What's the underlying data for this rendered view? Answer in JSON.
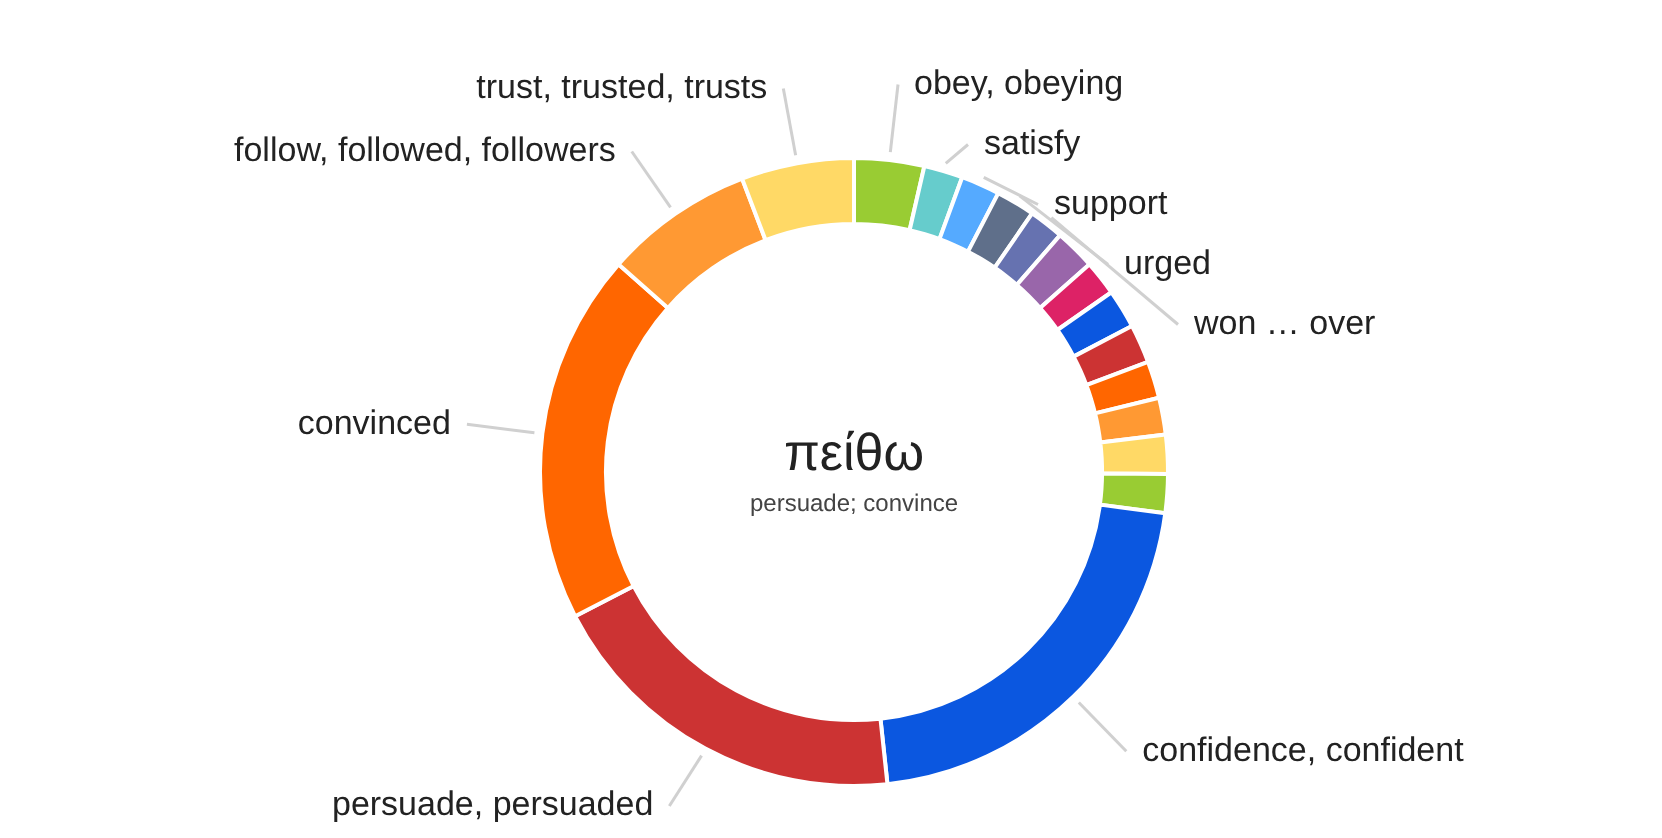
{
  "chart_data": {
    "type": "donut",
    "title": "πείθω",
    "subtitle": "persuade; convince",
    "categories": [
      "obey, obeying",
      "satisfy",
      "support",
      "urged",
      "won … over",
      null,
      null,
      null,
      null,
      null,
      null,
      null,
      null,
      "confidence, confident",
      "persuade, persuaded",
      "convinced",
      "follow, followed, followers",
      "trust, trusted, trusts"
    ],
    "values": [
      3.6,
      2,
      2,
      2,
      1.8,
      2.1,
      1.8,
      2,
      2,
      1.9,
      1.9,
      2,
      2,
      21.2,
      19.1,
      19.1,
      7.7,
      5.8
    ],
    "colors": [
      "#99cc33",
      "#66cccc",
      "#55aaff",
      "#5f6f8a",
      "#6672b0",
      "#9966aa",
      "#dd2266",
      "#0b57e0",
      "#cc3333",
      "#ff6600",
      "#ff9933",
      "#ffd966",
      "#99cc33",
      "#0b57e0",
      "#cc3333",
      "#ff6600",
      "#ff9933",
      "#ffd966"
    ],
    "legend": false
  }
}
